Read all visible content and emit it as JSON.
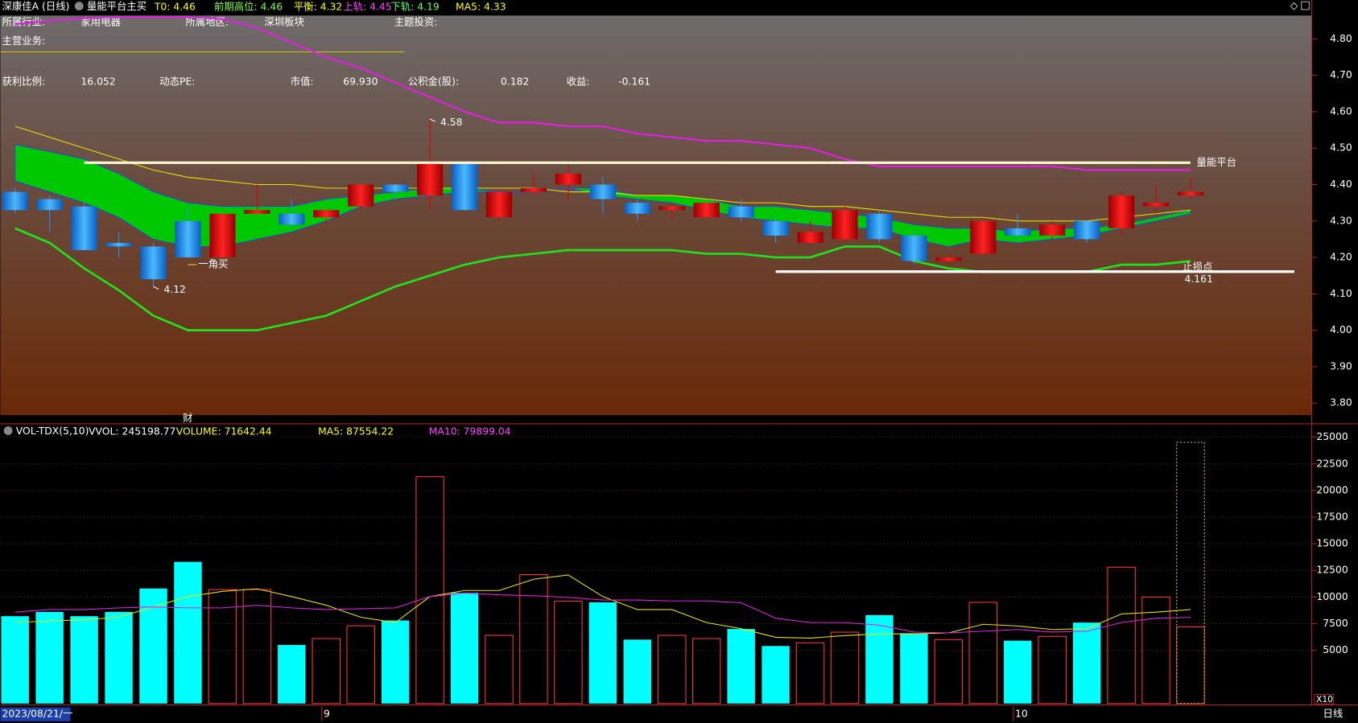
{
  "header": {
    "title": "深康佳A (日线)",
    "indicator": "量能平台主买",
    "items": [
      {
        "label": "T0:",
        "value": 4.46,
        "color": "#ffff00"
      },
      {
        "label": "前期高位:",
        "value": 4.46,
        "color": "#7cff40"
      },
      {
        "label": "平衡:",
        "value": 4.32,
        "color": "#ffff00"
      },
      {
        "label": "上轨:",
        "value": 4.45,
        "color": "#ff40ff"
      },
      {
        "label": "下轨:",
        "value": 4.19,
        "color": "#60ff60"
      },
      {
        "label": "MA5:",
        "value": 4.33,
        "color": "#ffff00"
      }
    ]
  },
  "info": [
    [
      {
        "label": "所属行业:",
        "value": "家用电器"
      },
      {
        "label": "所属地区:",
        "value": "深圳板块"
      },
      {
        "label": "主题投资:"
      }
    ],
    [
      {
        "label": "主营业务:"
      }
    ],
    [
      {
        "label": "获利比例:",
        "value": 16.052
      },
      {
        "label": "动态PE:"
      },
      {
        "label": "市值:",
        "value": "69.930"
      },
      {
        "label": "公积金(股):",
        "value": 0.182
      },
      {
        "label": "收益:",
        "value": -0.161
      }
    ]
  ],
  "volume_header": {
    "title": "VOL-TDX(5,10)",
    "items": [
      {
        "label": "VVOL:",
        "value": 245198.77,
        "color": "#ffffff"
      },
      {
        "label": "VOLUME:",
        "value": 71642.44,
        "color": "#ffff00"
      },
      {
        "label": "MA5:",
        "value": 87554.22,
        "color": "#ffff00"
      },
      {
        "label": "MA10:",
        "value": 79899.04,
        "color": "#ff40ff"
      }
    ]
  },
  "period_label": "日线",
  "chart_data": [
    {
      "type": "candlestick",
      "open": [
        4.38,
        4.36,
        4.34,
        4.24,
        4.23,
        4.3,
        4.2,
        4.32,
        4.32,
        4.31,
        4.34,
        4.4,
        4.37,
        4.46,
        4.31,
        4.38,
        4.4,
        4.4,
        4.35,
        4.33,
        4.31,
        4.34,
        4.3,
        4.24,
        4.25,
        4.32,
        4.26,
        4.19,
        4.21,
        4.28,
        4.26,
        4.3,
        4.28,
        4.34,
        4.37
      ],
      "high": [
        4.39,
        4.37,
        4.35,
        4.27,
        4.24,
        4.34,
        4.32,
        4.4,
        4.36,
        4.33,
        4.4,
        4.4,
        4.58,
        4.46,
        4.38,
        4.43,
        4.46,
        4.42,
        4.36,
        4.35,
        4.35,
        4.36,
        4.31,
        4.3,
        4.34,
        4.33,
        4.27,
        4.21,
        4.3,
        4.32,
        4.3,
        4.3,
        4.38,
        4.4,
        4.42
      ],
      "low": [
        4.32,
        4.27,
        4.22,
        4.2,
        4.12,
        4.2,
        4.2,
        4.32,
        4.28,
        4.29,
        4.33,
        4.36,
        4.33,
        4.33,
        4.3,
        4.37,
        4.36,
        4.32,
        4.3,
        4.3,
        4.31,
        4.3,
        4.24,
        4.23,
        4.24,
        4.24,
        4.18,
        4.18,
        4.21,
        4.25,
        4.25,
        4.24,
        4.26,
        4.32,
        4.36
      ],
      "close": [
        4.33,
        4.33,
        4.22,
        4.23,
        4.14,
        4.2,
        4.32,
        4.33,
        4.29,
        4.33,
        4.4,
        4.38,
        4.46,
        4.33,
        4.38,
        4.39,
        4.43,
        4.36,
        4.32,
        4.34,
        4.35,
        4.31,
        4.26,
        4.27,
        4.33,
        4.25,
        4.19,
        4.2,
        4.3,
        4.26,
        4.29,
        4.25,
        4.37,
        4.35,
        4.38
      ],
      "up_color": "#e00000",
      "down_color": "#1e90ff",
      "ylim": [
        3.767,
        4.864
      ],
      "yticks": [
        {
          "value": 4.8,
          "label": "4.80"
        },
        {
          "value": 4.7,
          "label": "4.70"
        },
        {
          "value": 4.6,
          "label": "4.60"
        },
        {
          "value": 4.5,
          "label": "4.50"
        },
        {
          "value": 4.4,
          "label": "4.40"
        },
        {
          "value": 4.3,
          "label": "4.30"
        },
        {
          "value": 4.2,
          "label": "4.20"
        },
        {
          "value": 4.1,
          "label": "4.10"
        },
        {
          "value": 4.0,
          "label": "4.00"
        },
        {
          "value": 3.9,
          "label": "3.90"
        },
        {
          "value": 3.8,
          "label": "3.80"
        }
      ],
      "band": {
        "color": "#00c800",
        "upper": [
          4.51,
          4.49,
          4.47,
          4.43,
          4.38,
          4.35,
          4.34,
          4.34,
          4.34,
          4.36,
          4.37,
          4.38,
          4.39,
          4.39,
          4.38,
          4.38,
          4.39,
          4.39,
          4.37,
          4.37,
          4.36,
          4.34,
          4.34,
          4.33,
          4.32,
          4.31,
          4.29,
          4.28,
          4.28,
          4.27,
          4.28,
          4.28,
          4.29,
          4.31,
          4.33
        ],
        "lower": [
          4.41,
          4.38,
          4.35,
          4.31,
          4.25,
          4.23,
          4.23,
          4.25,
          4.27,
          4.3,
          4.34,
          4.36,
          4.37,
          4.38,
          4.38,
          4.38,
          4.39,
          4.37,
          4.36,
          4.35,
          4.33,
          4.31,
          4.3,
          4.29,
          4.28,
          4.28,
          4.25,
          4.23,
          4.25,
          4.24,
          4.25,
          4.26,
          4.28,
          4.3,
          4.32
        ]
      },
      "lines": [
        {
          "color": "#e020e0",
          "width": 2,
          "values": [
            4.84,
            4.85,
            4.857,
            4.86,
            4.86,
            4.86,
            4.855,
            4.83,
            4.79,
            4.75,
            4.72,
            4.68,
            4.64,
            4.6,
            4.57,
            4.57,
            4.56,
            4.56,
            4.54,
            4.53,
            4.52,
            4.52,
            4.51,
            4.5,
            4.47,
            4.45,
            4.45,
            4.45,
            4.45,
            4.45,
            4.45,
            4.44,
            4.44,
            4.44,
            4.44
          ]
        },
        {
          "color": "#20e020",
          "width": 2.5,
          "values": [
            4.28,
            4.24,
            4.17,
            4.11,
            4.04,
            4.0,
            4.0,
            4.0,
            4.02,
            4.04,
            4.08,
            4.12,
            4.15,
            4.18,
            4.2,
            4.21,
            4.22,
            4.22,
            4.22,
            4.22,
            4.21,
            4.21,
            4.2,
            4.2,
            4.23,
            4.23,
            4.19,
            4.17,
            4.16,
            4.16,
            4.16,
            4.16,
            4.18,
            4.18,
            4.19
          ]
        },
        {
          "color": "#e8e000",
          "width": 1,
          "values": [
            4.56,
            4.53,
            4.5,
            4.47,
            4.44,
            4.42,
            4.41,
            4.4,
            4.4,
            4.39,
            4.39,
            4.39,
            4.39,
            4.39,
            4.39,
            4.39,
            4.38,
            4.38,
            4.37,
            4.37,
            4.36,
            4.35,
            4.35,
            4.34,
            4.34,
            4.33,
            4.32,
            4.31,
            4.31,
            4.3,
            4.3,
            4.3,
            4.31,
            4.32,
            4.33
          ]
        }
      ],
      "levels": [
        {
          "value": 4.46,
          "label": "量能平台",
          "color": "#fff8d0",
          "from": 2,
          "to": 34
        },
        {
          "value": 4.161,
          "label": "止损点",
          "color": "#ffffff",
          "from": 22,
          "to": 37
        }
      ],
      "annotations": [
        {
          "index": 12,
          "value": 4.58
        },
        {
          "index": 4,
          "value": 4.12
        }
      ],
      "signals": [
        {
          "index": 5,
          "text": "一角买"
        }
      ],
      "markers": [
        {
          "index": 5,
          "text": "财"
        }
      ]
    },
    {
      "type": "bar",
      "categories": [
        "2023/08/21/一",
        null,
        null,
        null,
        null,
        null,
        null,
        null,
        null,
        "9",
        null,
        null,
        null,
        null,
        null,
        null,
        null,
        null,
        null,
        null,
        null,
        null,
        null,
        null,
        null,
        null,
        null,
        null,
        null,
        "10",
        null,
        null,
        null,
        null,
        null
      ],
      "values": [
        8200,
        8600,
        8200,
        8600,
        10800,
        13300,
        10700,
        10700,
        5500,
        6100,
        7300,
        7800,
        21300,
        10400,
        6400,
        12100,
        9600,
        9500,
        6000,
        6400,
        6100,
        7000,
        5400,
        5700,
        6700,
        8300,
        6600,
        6000,
        9500,
        5900,
        6300,
        7600,
        12800,
        10000,
        7200
      ],
      "forecast": 24520,
      "up_color": "#ff3232",
      "down_color": "#00ffff",
      "ylim": [
        0,
        26100
      ],
      "yticks": [
        5000,
        7500,
        10000,
        12500,
        15000,
        17500,
        20000,
        22500,
        25000
      ],
      "grid": true,
      "unit_label": "X10",
      "lines": [
        {
          "color": "#e8e000",
          "values": [
            7600,
            7760,
            7850,
            8100,
            9070,
            10040,
            10530,
            10770,
            10040,
            9230,
            8100,
            7600,
            10040,
            10610,
            10610,
            11670,
            12070,
            10040,
            8820,
            8820,
            7600,
            7030,
            6220,
            6140,
            6380,
            6540,
            6540,
            6630,
            7440,
            7280,
            6950,
            7030,
            8410,
            8580,
            8820
          ]
        },
        {
          "color": "#e020e0",
          "values": [
            8580,
            8820,
            8820,
            8980,
            9070,
            8980,
            8980,
            9230,
            8980,
            8820,
            8900,
            8980,
            10040,
            10370,
            10200,
            10120,
            9960,
            9720,
            9720,
            9630,
            9630,
            9470,
            8010,
            7600,
            7600,
            7360,
            6710,
            6630,
            6790,
            6950,
            6710,
            6790,
            7600,
            8010,
            8090
          ]
        }
      ]
    }
  ]
}
